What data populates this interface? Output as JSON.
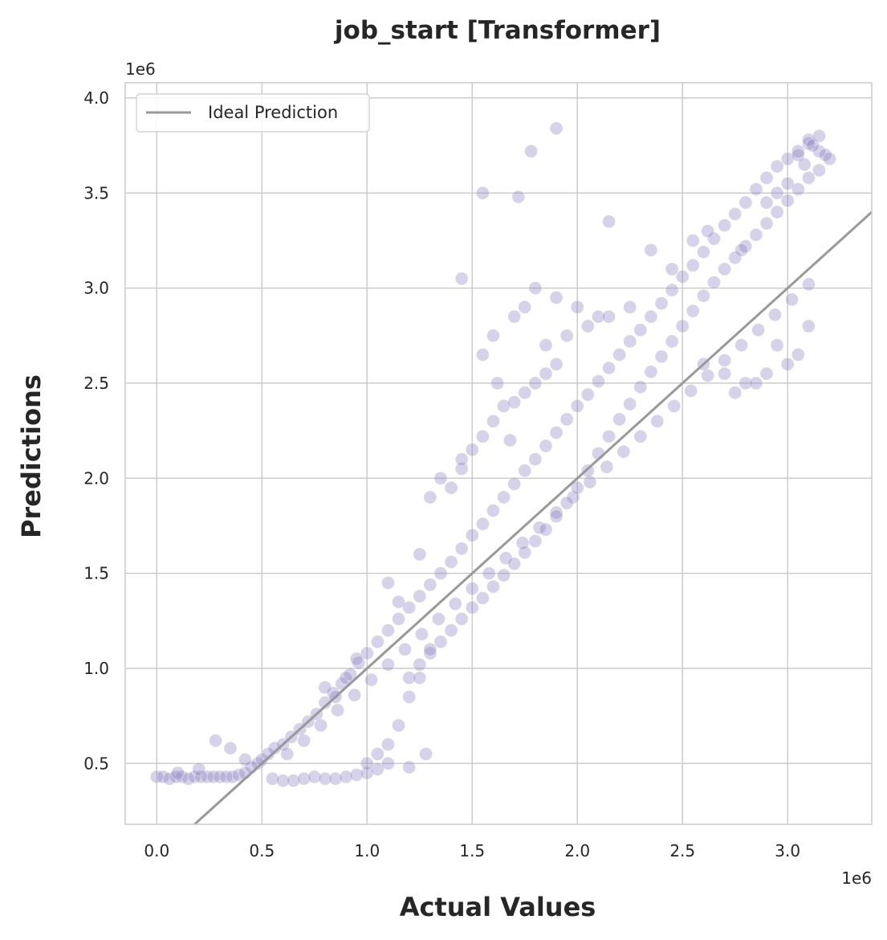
{
  "chart_data": {
    "type": "scatter",
    "title": "job_start [Transformer]",
    "xlabel": "Actual Values",
    "ylabel": "Predictions",
    "x_multiplier_label": "1e6",
    "y_multiplier_label": "1e6",
    "xlim": [
      -0.15,
      3.4
    ],
    "ylim": [
      0.18,
      4.08
    ],
    "x_ticks": [
      {
        "value": 0.0,
        "label": "0.0"
      },
      {
        "value": 0.5,
        "label": "0.5"
      },
      {
        "value": 1.0,
        "label": "1.0"
      },
      {
        "value": 1.5,
        "label": "1.5"
      },
      {
        "value": 2.0,
        "label": "2.0"
      },
      {
        "value": 2.5,
        "label": "2.5"
      },
      {
        "value": 3.0,
        "label": "3.0"
      }
    ],
    "y_ticks": [
      {
        "value": 0.5,
        "label": "0.5"
      },
      {
        "value": 1.0,
        "label": "1.0"
      },
      {
        "value": 1.5,
        "label": "1.5"
      },
      {
        "value": 2.0,
        "label": "2.0"
      },
      {
        "value": 2.5,
        "label": "2.5"
      },
      {
        "value": 3.0,
        "label": "3.0"
      },
      {
        "value": 3.5,
        "label": "3.5"
      },
      {
        "value": 4.0,
        "label": "4.0"
      }
    ],
    "grid": true,
    "legend": {
      "placement": "top-left",
      "entries": [
        {
          "label": "Ideal Prediction",
          "color": "#999999"
        }
      ]
    },
    "ideal_line": {
      "name": "Ideal Prediction",
      "x": [
        0.0,
        3.4
      ],
      "y": [
        0.0,
        3.4
      ],
      "color": "#999999"
    },
    "scatter_color": "#8a7fc0",
    "series": [
      {
        "x": [
          0.0,
          0.03,
          0.06,
          0.09,
          0.12,
          0.15,
          0.18,
          0.21,
          0.24,
          0.27,
          0.3,
          0.33,
          0.36,
          0.39,
          0.42,
          0.45,
          0.48,
          0.5,
          0.53,
          0.56,
          0.6,
          0.64,
          0.68,
          0.72,
          0.76,
          0.8,
          0.84,
          0.88,
          0.92,
          0.96,
          1.0,
          1.05,
          1.1,
          1.15,
          1.2,
          1.25,
          1.3,
          1.35,
          1.4,
          1.45,
          1.5,
          1.55,
          1.6,
          1.65,
          1.7,
          1.75,
          1.8,
          1.85,
          1.9,
          1.95,
          2.0,
          2.05,
          2.1,
          2.15,
          2.2,
          2.25,
          2.3,
          2.35,
          2.4,
          2.45,
          2.5,
          2.55,
          2.6,
          2.65,
          2.7,
          2.75,
          2.8,
          2.85,
          2.9,
          2.95,
          3.0,
          3.05,
          3.1,
          3.15,
          3.2,
          0.55,
          0.6,
          0.65,
          0.7,
          0.75,
          0.8,
          0.85,
          0.9,
          0.95,
          1.0,
          1.05,
          1.1,
          0.62,
          0.7,
          0.78,
          0.86,
          0.94,
          1.02,
          1.1,
          1.18,
          1.26,
          1.34,
          1.42,
          1.5,
          1.58,
          1.66,
          1.74,
          1.82,
          1.9,
          1.98,
          2.06,
          2.14,
          2.22,
          2.3,
          2.38,
          2.46,
          2.54,
          2.62,
          2.7,
          2.78,
          2.86,
          2.94,
          3.02,
          3.1,
          1.2,
          1.25,
          1.3,
          1.35,
          1.4,
          1.45,
          1.5,
          1.55,
          1.6,
          1.65,
          1.7,
          1.75,
          1.8,
          1.85,
          1.9,
          1.95,
          2.0,
          2.05,
          2.1,
          2.15,
          2.2,
          2.25,
          2.3,
          2.35,
          2.4,
          2.45,
          2.5,
          2.55,
          2.6,
          2.65,
          2.7,
          2.75,
          2.8,
          2.85,
          2.9,
          2.95,
          3.0,
          3.05,
          3.1,
          3.15,
          1.4,
          1.45,
          1.5,
          1.55,
          1.6,
          1.65,
          1.7,
          1.75,
          1.8,
          1.85,
          1.9,
          1.55,
          1.6,
          1.7,
          1.75,
          1.8,
          1.9,
          2.0,
          2.1,
          1.35,
          1.45,
          1.62,
          1.68,
          1.85,
          1.95,
          2.05,
          2.15,
          2.25,
          2.6,
          2.7,
          2.8,
          2.9,
          3.0,
          3.05,
          2.75,
          2.85,
          2.95,
          3.1,
          1.3,
          1.25,
          1.1,
          1.15,
          0.9,
          0.95,
          0.8,
          0.85,
          1.2,
          1.28,
          0.28,
          0.35,
          0.42,
          0.1,
          0.2,
          3.05,
          3.1,
          3.12,
          3.15,
          3.18,
          3.08,
          3.0,
          2.95,
          2.9,
          1.0,
          1.05,
          1.1,
          1.15,
          1.2,
          1.25,
          1.3,
          1.55,
          1.45,
          1.9,
          1.78,
          1.72,
          2.15,
          2.35,
          2.45,
          2.55,
          2.62,
          2.78
        ],
        "y": [
          0.43,
          0.43,
          0.42,
          0.43,
          0.43,
          0.42,
          0.43,
          0.43,
          0.43,
          0.43,
          0.43,
          0.43,
          0.43,
          0.44,
          0.45,
          0.48,
          0.5,
          0.52,
          0.55,
          0.58,
          0.6,
          0.64,
          0.68,
          0.72,
          0.76,
          0.82,
          0.87,
          0.92,
          0.97,
          1.03,
          1.08,
          1.14,
          1.2,
          1.26,
          1.32,
          1.38,
          1.44,
          1.5,
          1.56,
          1.63,
          1.7,
          1.76,
          1.83,
          1.9,
          1.97,
          2.04,
          2.1,
          2.17,
          2.24,
          2.31,
          2.38,
          2.44,
          2.51,
          2.58,
          2.65,
          2.72,
          2.78,
          2.85,
          2.92,
          2.99,
          3.06,
          3.12,
          3.19,
          3.26,
          3.33,
          3.39,
          3.45,
          3.52,
          3.58,
          3.64,
          3.68,
          3.72,
          3.76,
          3.72,
          3.68,
          0.42,
          0.41,
          0.41,
          0.42,
          0.43,
          0.42,
          0.42,
          0.43,
          0.44,
          0.45,
          0.47,
          0.5,
          0.55,
          0.62,
          0.7,
          0.78,
          0.86,
          0.94,
          1.02,
          1.1,
          1.18,
          1.26,
          1.34,
          1.42,
          1.5,
          1.58,
          1.66,
          1.74,
          1.82,
          1.9,
          1.98,
          2.06,
          2.14,
          2.22,
          2.3,
          2.38,
          2.46,
          2.54,
          2.62,
          2.7,
          2.78,
          2.86,
          2.94,
          3.02,
          0.95,
          1.02,
          1.08,
          1.14,
          1.2,
          1.26,
          1.32,
          1.37,
          1.43,
          1.49,
          1.55,
          1.61,
          1.67,
          1.73,
          1.8,
          1.87,
          1.95,
          2.04,
          2.13,
          2.22,
          2.31,
          2.39,
          2.48,
          2.56,
          2.64,
          2.72,
          2.8,
          2.88,
          2.96,
          3.03,
          3.1,
          3.16,
          3.22,
          3.28,
          3.34,
          3.4,
          3.46,
          3.52,
          3.58,
          3.62,
          1.95,
          2.05,
          2.15,
          2.22,
          2.3,
          2.38,
          2.4,
          2.45,
          2.5,
          2.55,
          2.6,
          2.65,
          2.75,
          2.85,
          2.9,
          3.0,
          2.95,
          2.9,
          2.85,
          2.0,
          2.1,
          2.5,
          2.2,
          2.7,
          2.75,
          2.8,
          2.85,
          2.9,
          2.6,
          2.55,
          2.5,
          2.55,
          2.6,
          2.65,
          2.45,
          2.5,
          2.7,
          2.8,
          1.9,
          1.6,
          1.45,
          1.35,
          0.95,
          1.05,
          0.9,
          0.85,
          0.48,
          0.55,
          0.62,
          0.58,
          0.52,
          0.45,
          0.47,
          3.7,
          3.78,
          3.75,
          3.8,
          3.7,
          3.65,
          3.55,
          3.5,
          3.45,
          0.5,
          0.55,
          0.6,
          0.7,
          0.85,
          0.95,
          1.1,
          3.5,
          3.05,
          3.84,
          3.72,
          3.48,
          3.35,
          3.2,
          3.1,
          3.25,
          3.3,
          3.2
        ]
      }
    ]
  }
}
